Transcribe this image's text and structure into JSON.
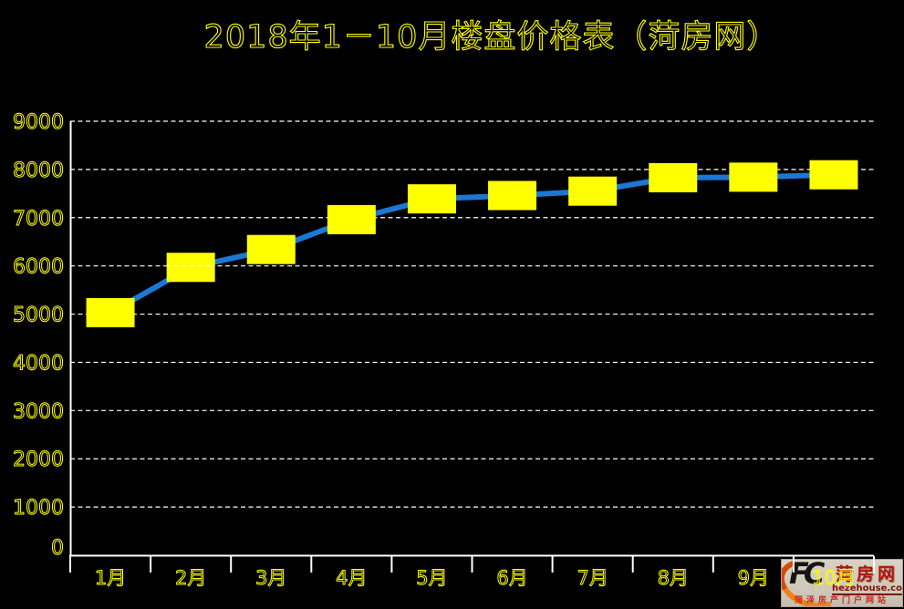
{
  "chart_data": {
    "type": "line",
    "title": "2018年1－10月楼盘价格表（菏房网）",
    "categories": [
      "1月",
      "2月",
      "3月",
      "4月",
      "5月",
      "6月",
      "7月",
      "8月",
      "9月",
      "10月"
    ],
    "values": [
      5030,
      5970,
      6340,
      6960,
      7390,
      7460,
      7550,
      7830,
      7840,
      7890
    ],
    "ylim": [
      0,
      9000
    ],
    "ytick_step": 1000,
    "ytick_labels": [
      "0",
      "1000",
      "2000",
      "3000",
      "4000",
      "5000",
      "6000",
      "7000",
      "8000",
      "9000"
    ],
    "grid": "horizontal-dashed",
    "legend": "none",
    "background_color": "#000000",
    "text_color": "#ffff00",
    "line_color": "#1b78d4",
    "marker_shape": "rect",
    "marker_color": "#ffff00",
    "axis_color": "#ffffff",
    "gridline_color": "#ffffff"
  },
  "watermark": {
    "logo_text": "FC",
    "site_name": "菏房网",
    "site_url": "hezehouse.com",
    "tagline": "菏泽房产门户网站"
  }
}
